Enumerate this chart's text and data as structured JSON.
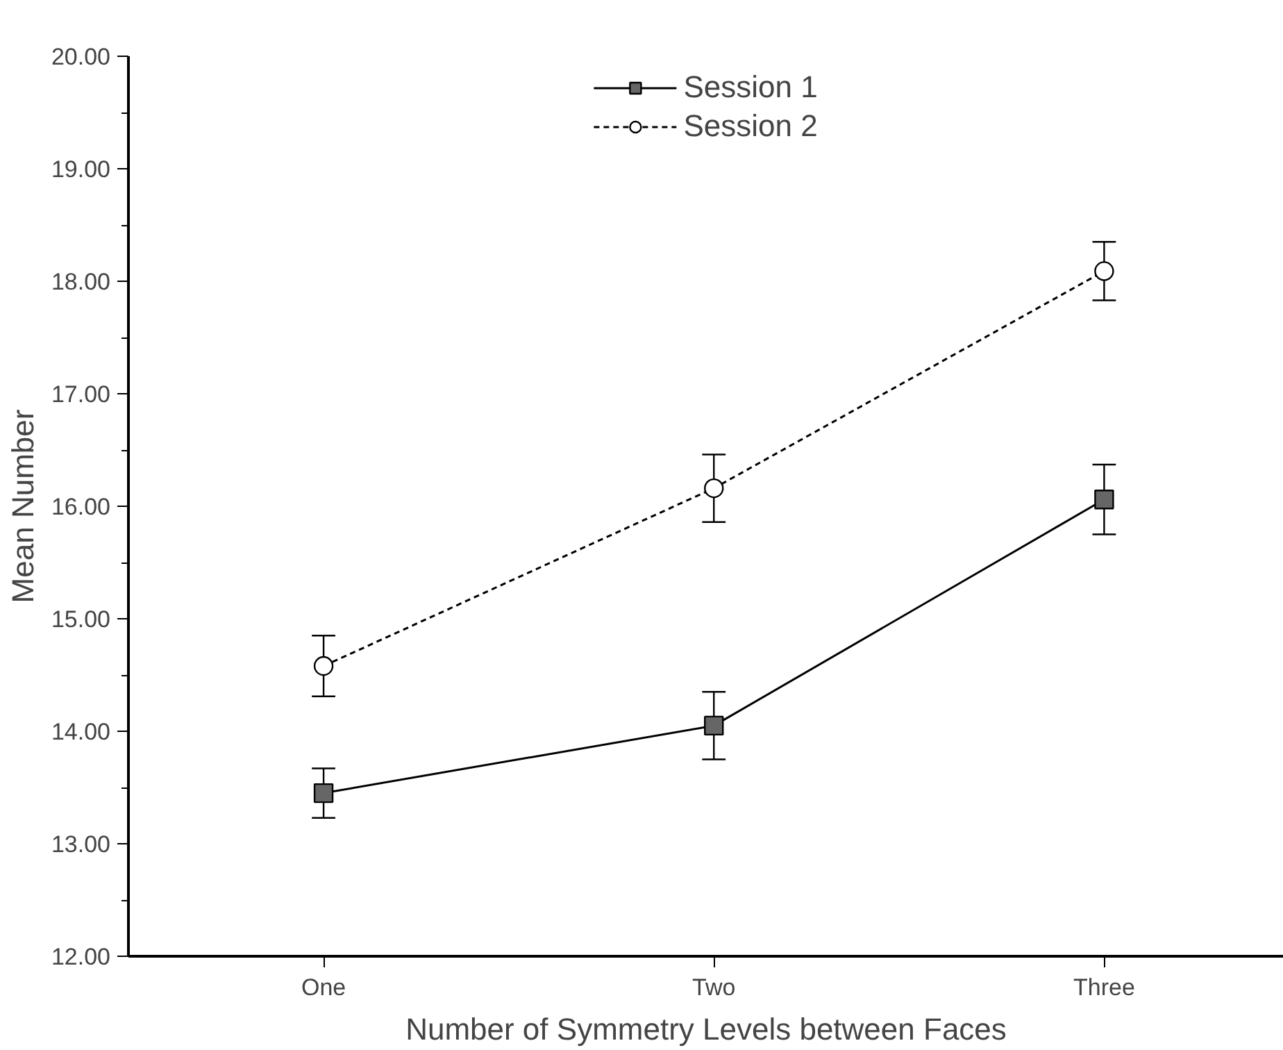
{
  "chart_data": {
    "type": "line",
    "xlabel": "Number of Symmetry Levels between Faces",
    "ylabel": "Mean Number",
    "categories": [
      "One",
      "Two",
      "Three"
    ],
    "series": [
      {
        "name": "Session 1",
        "color": "#000000",
        "marker": "square",
        "line_style": "solid",
        "values": [
          13.45,
          14.05,
          16.06
        ],
        "errors": [
          0.22,
          0.3,
          0.31
        ]
      },
      {
        "name": "Session 2",
        "color": "#000000",
        "marker": "circle",
        "line_style": "dashed",
        "values": [
          14.58,
          16.16,
          18.09
        ],
        "errors": [
          0.27,
          0.3,
          0.26
        ]
      }
    ],
    "ylim": [
      12,
      20
    ],
    "yticks": [
      {
        "value": 12,
        "label": "12.00"
      },
      {
        "value": 13,
        "label": "13.00"
      },
      {
        "value": 14,
        "label": "14.00"
      },
      {
        "value": 15,
        "label": "15.00"
      },
      {
        "value": 16,
        "label": "16.00"
      },
      {
        "value": 17,
        "label": "17.00"
      },
      {
        "value": 18,
        "label": "18.00"
      },
      {
        "value": 19,
        "label": "19.00"
      },
      {
        "value": 20,
        "label": "20.00"
      }
    ],
    "grid": false,
    "legend": "top"
  }
}
